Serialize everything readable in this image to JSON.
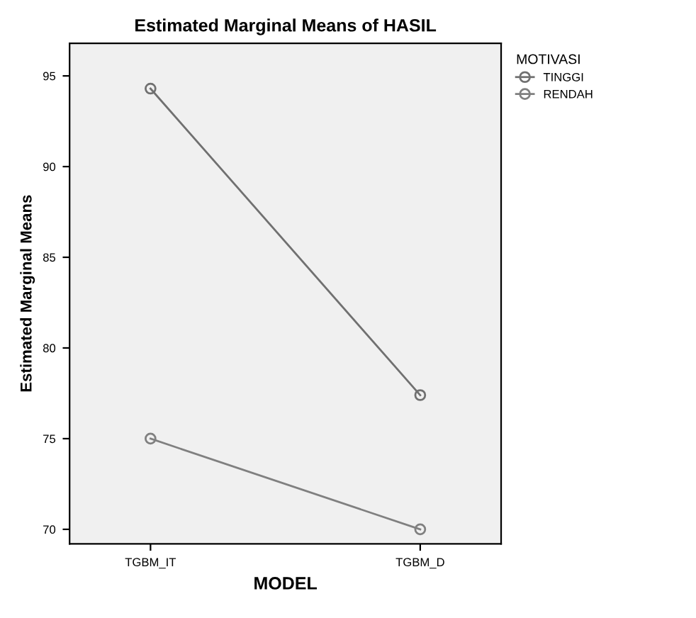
{
  "chart_data": {
    "type": "line",
    "title": "Estimated Marginal Means of HASIL",
    "xlabel": "MODEL",
    "ylabel": "Estimated Marginal Means",
    "categories": [
      "TGBM_IT",
      "TGBM_D"
    ],
    "series": [
      {
        "name": "TINGGI",
        "color": "#707070",
        "values": [
          94.3,
          77.4
        ]
      },
      {
        "name": "RENDAH",
        "color": "#808080",
        "values": [
          75.0,
          70.0
        ]
      }
    ],
    "legend_title": "MOTIVASI",
    "legend": "top right",
    "marker": "circle",
    "line_style": "solid",
    "ylim": [
      69.2,
      96.8
    ],
    "yticks": [
      70,
      75,
      80,
      85,
      90,
      95
    ],
    "grid": false
  }
}
